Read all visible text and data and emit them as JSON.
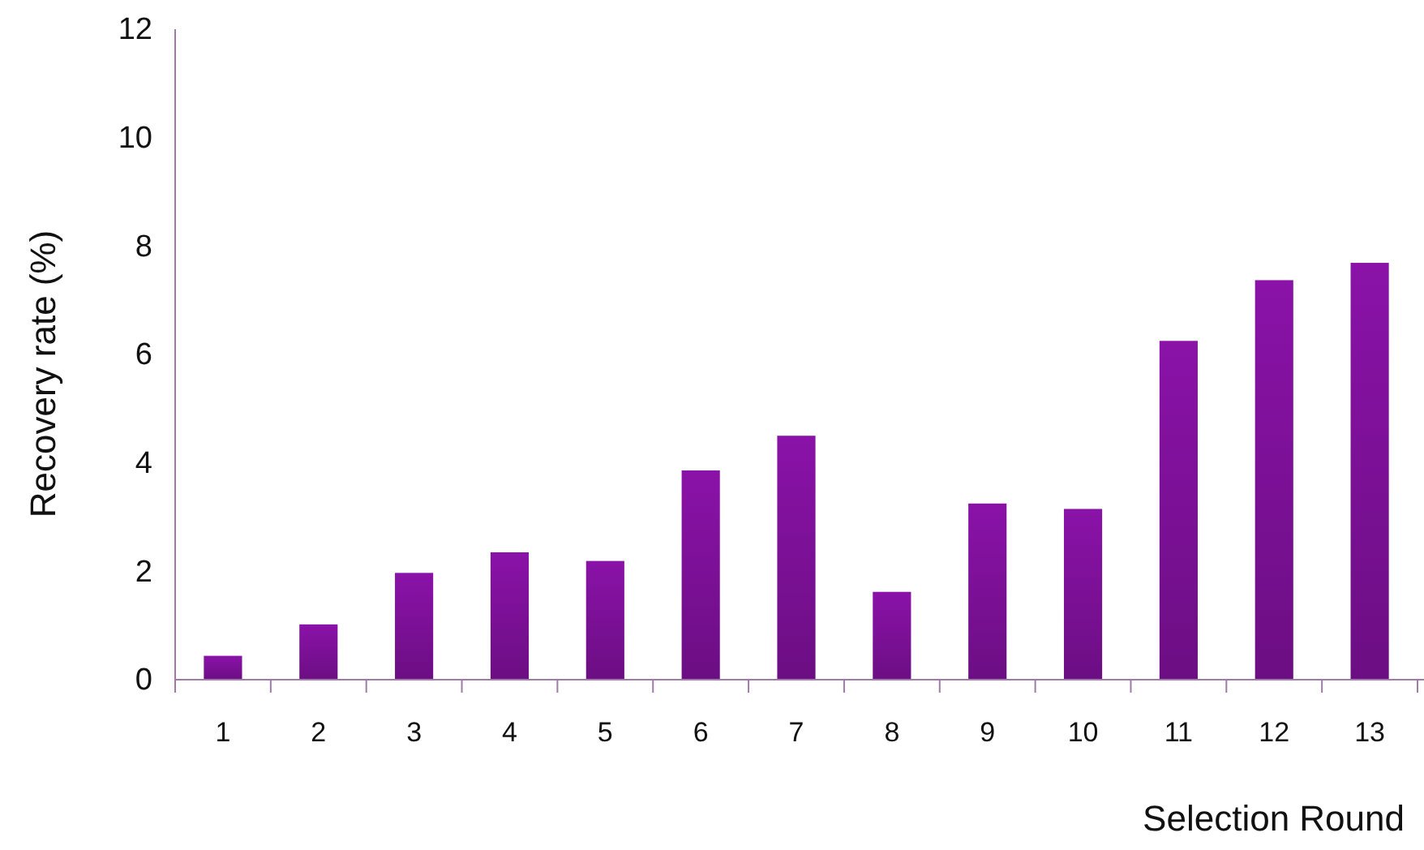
{
  "chart_data": {
    "type": "bar",
    "xlabel": "Selection Round",
    "ylabel": "Recovery rate (%)",
    "categories": [
      "1",
      "2",
      "3",
      "4",
      "5",
      "6",
      "7",
      "8",
      "9",
      "10",
      "11",
      "12",
      "13"
    ],
    "values": [
      0.44,
      1.02,
      1.97,
      2.35,
      2.19,
      3.86,
      4.5,
      1.62,
      3.25,
      3.15,
      6.25,
      7.37,
      7.69
    ],
    "color": "#8a12a8",
    "ylim": [
      0,
      12
    ],
    "yticks": [
      0,
      2,
      4,
      6,
      8,
      10,
      12
    ],
    "grid": false
  }
}
